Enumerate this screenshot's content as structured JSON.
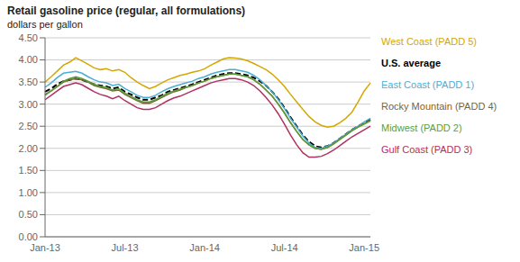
{
  "chart_data": {
    "type": "line",
    "title": "Retail gasoline price (regular, all formulations)",
    "subtitle": "dollars  per gallon",
    "categories": [
      "Jan-13",
      null,
      null,
      null,
      null,
      null,
      null,
      null,
      null,
      null,
      null,
      null,
      null,
      "Jul-13",
      null,
      null,
      null,
      null,
      null,
      null,
      null,
      null,
      null,
      null,
      null,
      null,
      "Jan-14",
      null,
      null,
      null,
      null,
      null,
      null,
      null,
      null,
      null,
      null,
      null,
      null,
      "Jul-14",
      null,
      null,
      null,
      null,
      null,
      null,
      null,
      null,
      null,
      null,
      null,
      null,
      "Jan-15",
      null
    ],
    "ylim": [
      0.0,
      4.5
    ],
    "yticks": [
      {
        "value": 0.0,
        "label": "0.00"
      },
      {
        "value": 0.5,
        "label": "0.50"
      },
      {
        "value": 1.0,
        "label": "1.00"
      },
      {
        "value": 1.5,
        "label": "1.50"
      },
      {
        "value": 2.0,
        "label": "2.00"
      },
      {
        "value": 2.5,
        "label": "2.50"
      },
      {
        "value": 3.0,
        "label": "3.00"
      },
      {
        "value": 3.5,
        "label": "3.50"
      },
      {
        "value": 4.0,
        "label": "4.00"
      },
      {
        "value": 4.5,
        "label": "4.50"
      }
    ],
    "grid": true,
    "legend": "right",
    "series": [
      {
        "name": "West Coast (PADD 5)",
        "color": "#d4a800",
        "line_style": "solid",
        "values": [
          3.5,
          3.62,
          3.75,
          3.88,
          3.95,
          4.05,
          3.98,
          3.9,
          3.82,
          3.78,
          3.8,
          3.75,
          3.78,
          3.72,
          3.6,
          3.5,
          3.42,
          3.35,
          3.4,
          3.48,
          3.55,
          3.6,
          3.65,
          3.68,
          3.72,
          3.75,
          3.8,
          3.88,
          3.95,
          4.02,
          4.05,
          4.04,
          4.02,
          3.98,
          3.92,
          3.85,
          3.78,
          3.68,
          3.55,
          3.4,
          3.22,
          3.05,
          2.88,
          2.72,
          2.6,
          2.52,
          2.48,
          2.5,
          2.58,
          2.68,
          2.82,
          3.05,
          3.3,
          3.48
        ]
      },
      {
        "name": "U.S. average",
        "color": "#000000",
        "line_style": "dashed",
        "values": [
          3.28,
          3.35,
          3.45,
          3.52,
          3.55,
          3.58,
          3.55,
          3.5,
          3.45,
          3.42,
          3.4,
          3.35,
          3.38,
          3.28,
          3.22,
          3.15,
          3.1,
          3.1,
          3.15,
          3.2,
          3.28,
          3.32,
          3.36,
          3.4,
          3.45,
          3.5,
          3.55,
          3.6,
          3.65,
          3.68,
          3.7,
          3.7,
          3.68,
          3.65,
          3.6,
          3.52,
          3.42,
          3.28,
          3.12,
          2.92,
          2.7,
          2.5,
          2.3,
          2.15,
          2.05,
          2.02,
          2.05,
          2.12,
          2.22,
          2.32,
          2.42,
          2.5,
          2.58,
          2.65
        ]
      },
      {
        "name": "East Coast (PADD 1)",
        "color": "#4bafd4",
        "line_style": "solid",
        "values": [
          3.38,
          3.48,
          3.6,
          3.7,
          3.72,
          3.74,
          3.7,
          3.62,
          3.55,
          3.5,
          3.48,
          3.42,
          3.45,
          3.35,
          3.28,
          3.2,
          3.15,
          3.15,
          3.2,
          3.28,
          3.35,
          3.4,
          3.44,
          3.48,
          3.52,
          3.58,
          3.62,
          3.68,
          3.72,
          3.75,
          3.78,
          3.78,
          3.75,
          3.72,
          3.65,
          3.55,
          3.42,
          3.28,
          3.1,
          2.9,
          2.68,
          2.48,
          2.28,
          2.12,
          2.02,
          2.0,
          2.05,
          2.12,
          2.22,
          2.32,
          2.42,
          2.5,
          2.6,
          2.68
        ]
      },
      {
        "name": "Rocky Mountain (PADD 4)",
        "color": "#7a6535",
        "line_style": "solid",
        "values": [
          3.22,
          3.3,
          3.4,
          3.5,
          3.55,
          3.58,
          3.55,
          3.5,
          3.42,
          3.38,
          3.35,
          3.3,
          3.32,
          3.22,
          3.15,
          3.08,
          3.02,
          3.02,
          3.08,
          3.15,
          3.22,
          3.28,
          3.32,
          3.38,
          3.42,
          3.48,
          3.52,
          3.58,
          3.62,
          3.65,
          3.68,
          3.68,
          3.65,
          3.62,
          3.55,
          3.45,
          3.32,
          3.18,
          3.0,
          2.8,
          2.58,
          2.38,
          2.2,
          2.08,
          2.0,
          1.98,
          2.02,
          2.1,
          2.2,
          2.3,
          2.4,
          2.48,
          2.56,
          2.64
        ]
      },
      {
        "name": "Midwest (PADD 2)",
        "color": "#5a9e3a",
        "line_style": "solid",
        "values": [
          3.2,
          3.3,
          3.4,
          3.52,
          3.58,
          3.62,
          3.58,
          3.52,
          3.45,
          3.4,
          3.38,
          3.32,
          3.35,
          3.25,
          3.18,
          3.1,
          3.05,
          3.05,
          3.1,
          3.18,
          3.25,
          3.3,
          3.34,
          3.38,
          3.42,
          3.48,
          3.52,
          3.58,
          3.62,
          3.65,
          3.68,
          3.68,
          3.65,
          3.62,
          3.55,
          3.45,
          3.32,
          3.18,
          3.0,
          2.8,
          2.58,
          2.38,
          2.2,
          2.08,
          2.0,
          1.98,
          2.02,
          2.1,
          2.2,
          2.3,
          2.4,
          2.48,
          2.55,
          2.62
        ]
      },
      {
        "name": "Gulf Coast (PADD 3)",
        "color": "#b03060",
        "line_style": "solid",
        "values": [
          3.1,
          3.2,
          3.3,
          3.4,
          3.44,
          3.48,
          3.44,
          3.36,
          3.28,
          3.22,
          3.18,
          3.12,
          3.18,
          3.08,
          3.0,
          2.92,
          2.88,
          2.88,
          2.92,
          3.0,
          3.08,
          3.14,
          3.18,
          3.24,
          3.3,
          3.36,
          3.42,
          3.48,
          3.52,
          3.55,
          3.58,
          3.58,
          3.55,
          3.5,
          3.42,
          3.3,
          3.15,
          2.98,
          2.78,
          2.55,
          2.3,
          2.08,
          1.9,
          1.8,
          1.8,
          1.82,
          1.88,
          1.96,
          2.06,
          2.16,
          2.26,
          2.34,
          2.42,
          2.5
        ]
      }
    ]
  }
}
